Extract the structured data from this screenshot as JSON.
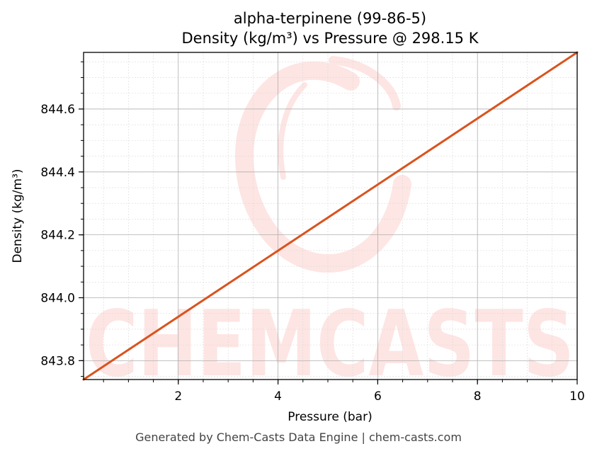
{
  "chart_data": {
    "type": "line",
    "title": "alpha-terpinene (99-86-5)",
    "subtitle": "Density (kg/m³) vs Pressure @ 298.15 K",
    "xlabel": "Pressure (bar)",
    "ylabel": "Density (kg/m³)",
    "xlim": [
      0.1,
      10
    ],
    "ylim": [
      843.74,
      844.78
    ],
    "xticks": [
      2,
      4,
      6,
      8,
      10
    ],
    "yticks": [
      843.8,
      844.0,
      844.2,
      844.4,
      844.6
    ],
    "ytick_labels": [
      "843.8",
      "844.0",
      "844.2",
      "844.4",
      "844.6"
    ],
    "grid": true,
    "series": [
      {
        "color": "#d9531e",
        "x": [
          0.1,
          10
        ],
        "y": [
          843.74,
          844.78
        ]
      }
    ]
  },
  "watermark": {
    "text": "CHEMCASTS",
    "color": "#fde3e1"
  },
  "footer": "Generated by Chem-Casts Data Engine | chem-casts.com"
}
